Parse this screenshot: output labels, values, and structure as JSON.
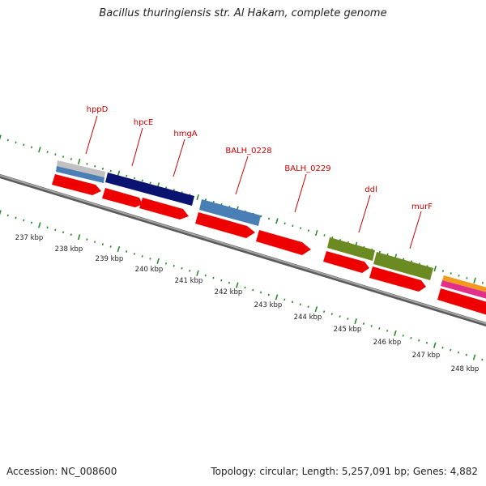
{
  "header": {
    "title": "Bacillus thuringiensis str. Al Hakam, complete genome"
  },
  "footer": {
    "accession": "Accession: NC_008600",
    "summary": "Topology: circular; Length: 5,257,091 bp; Genes: 4,882"
  },
  "colors": {
    "cds": "#ee0000",
    "gene_light_blue": "#4a7fb6",
    "gene_dark_blue": "#0a1370",
    "gene_olive": "#6b8a22",
    "gene_gray": "#bbbbbb",
    "gene_pink": "#e0308a",
    "gene_orange": "#f39a1e",
    "backbone": "#808080",
    "ticks": "#2a8a2a",
    "label": "#cc0000"
  },
  "kbp_labels": [
    "237 kbp",
    "238 kbp",
    "239 kbp",
    "240 kbp",
    "241 kbp",
    "242 kbp",
    "243 kbp",
    "244 kbp",
    "245 kbp",
    "246 kbp",
    "247 kbp",
    "248 kbp"
  ],
  "gene_labels": [
    "hppD",
    "hpcE",
    "hmgA",
    "BALH_0228",
    "BALH_0229",
    "ddl",
    "murF"
  ]
}
